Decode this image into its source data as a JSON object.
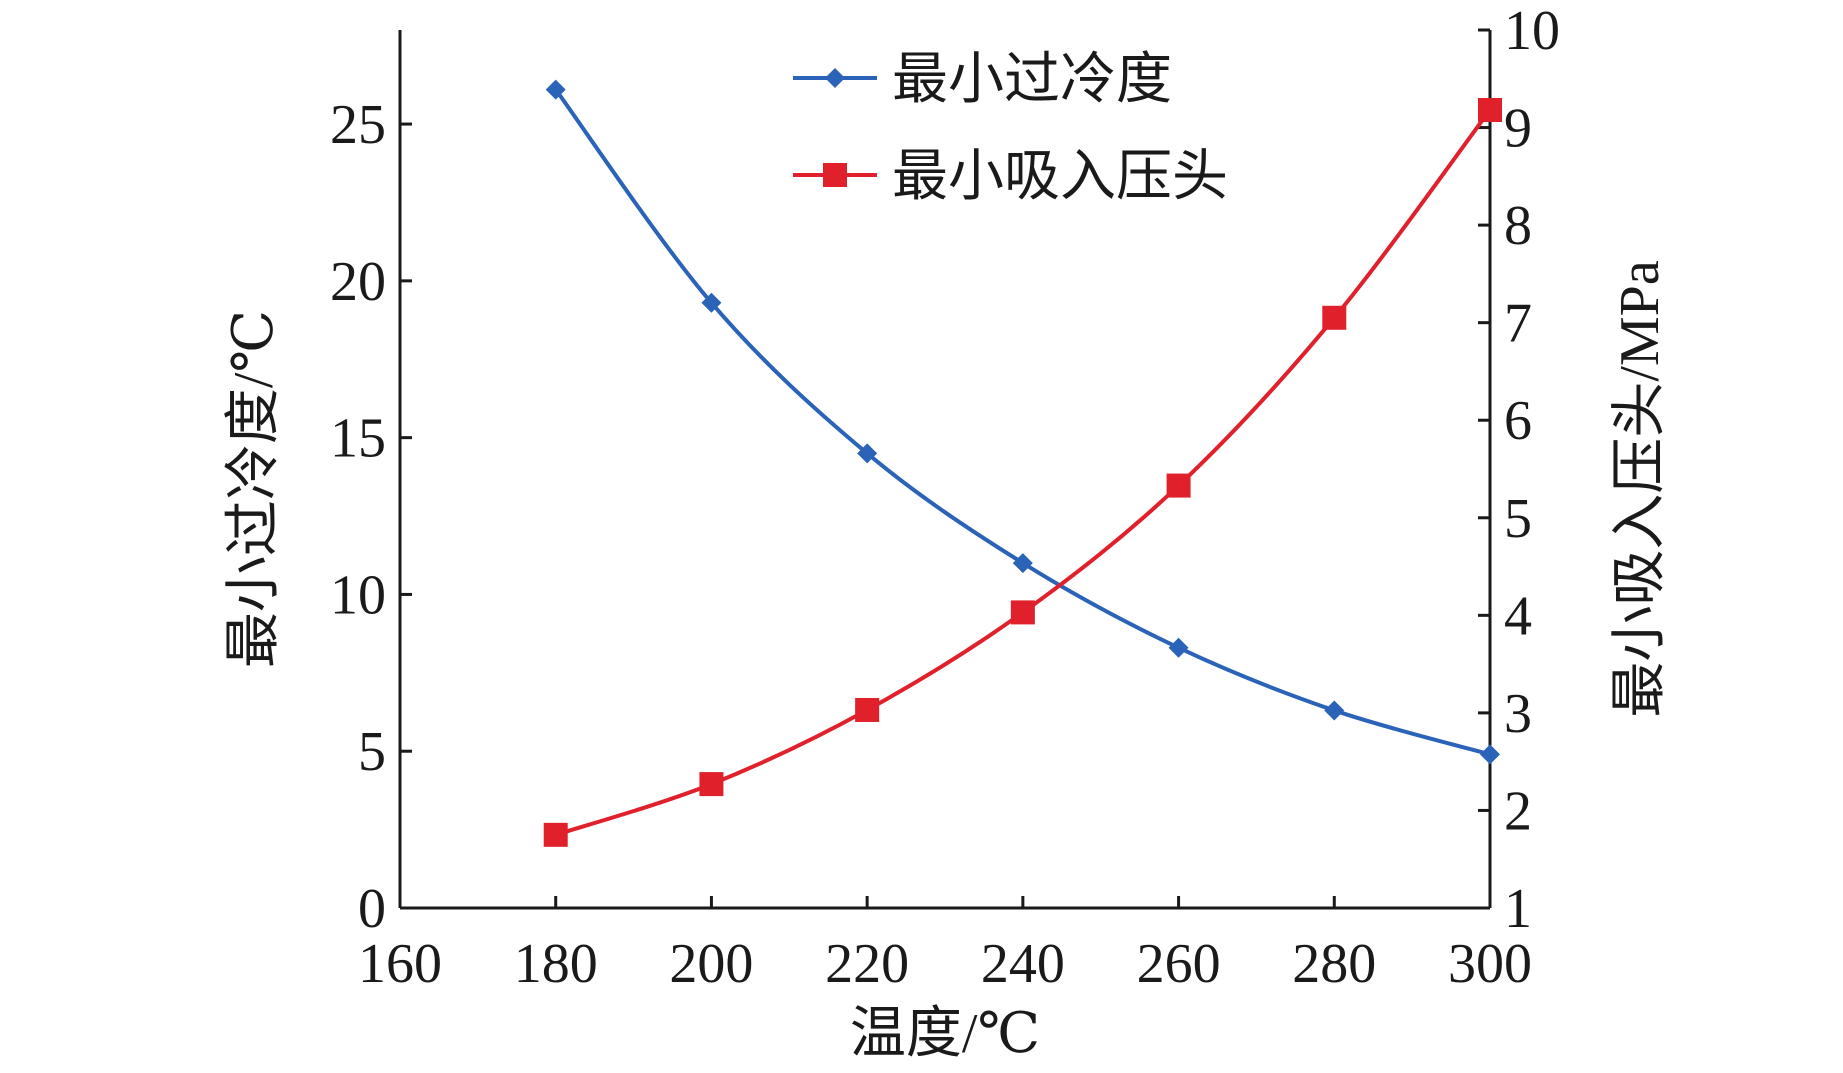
{
  "chart_data": {
    "type": "line",
    "xlabel": "温度/℃",
    "ylabel_left": "最小过冷度/℃",
    "ylabel_right": "最小吸入压头/MPa",
    "xlim": [
      160,
      300
    ],
    "ylim_left": [
      0,
      28
    ],
    "ylim_right": [
      1,
      10
    ],
    "x_ticks": [
      160,
      180,
      200,
      220,
      240,
      260,
      280,
      300
    ],
    "y_left_ticks": [
      0,
      5,
      10,
      15,
      20,
      25
    ],
    "y_right_ticks": [
      1,
      2,
      3,
      4,
      5,
      6,
      7,
      8,
      9,
      10
    ],
    "x_tick_labels": [
      "160",
      "180",
      "200",
      "220",
      "240",
      "260",
      "280",
      "300"
    ],
    "y_left_tick_labels": [
      "0",
      "5",
      "10",
      "15",
      "20",
      "25"
    ],
    "y_right_tick_labels": [
      "1",
      "2",
      "3",
      "4",
      "5",
      "6",
      "7",
      "8",
      "9",
      "10"
    ],
    "grid": false,
    "legend_position": "top-center",
    "series": [
      {
        "name": "最小过冷度",
        "axis": "left",
        "color": "#2a63b8",
        "marker": "diamond",
        "x": [
          180,
          200,
          220,
          240,
          260,
          280,
          300
        ],
        "values": [
          26.1,
          19.3,
          14.5,
          11.0,
          8.3,
          6.3,
          4.9
        ]
      },
      {
        "name": "最小吸入压头",
        "axis": "right",
        "color": "#e0212c",
        "marker": "square",
        "x": [
          180,
          200,
          220,
          240,
          260,
          280,
          300
        ],
        "values": [
          1.75,
          2.27,
          3.03,
          4.03,
          5.33,
          7.05,
          9.18
        ]
      }
    ]
  }
}
